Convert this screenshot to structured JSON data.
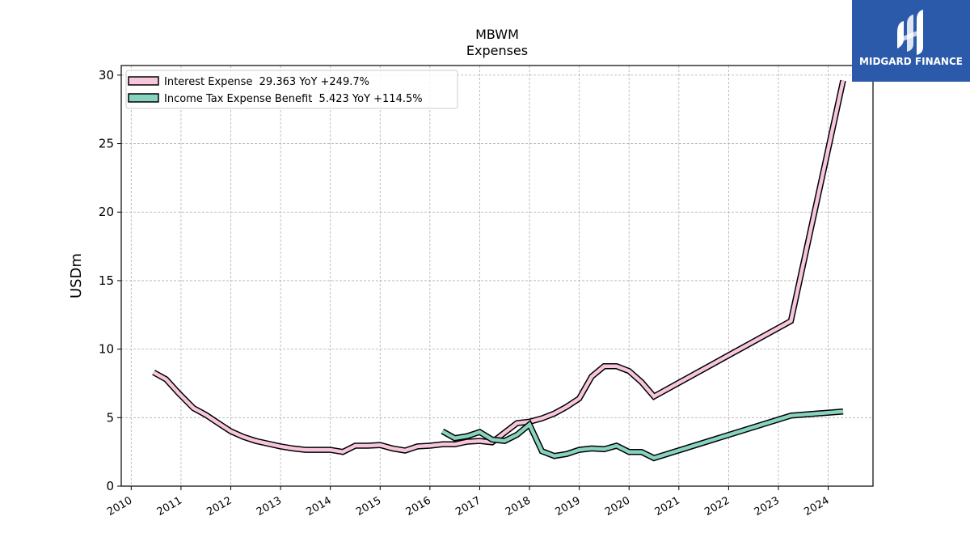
{
  "brand": {
    "name": "MIDGARD FINANCE",
    "bg_color": "#2b5aaa"
  },
  "chart_data": {
    "type": "line",
    "title": "MBWM",
    "subtitle": "Expenses",
    "xlabel": "",
    "ylabel": "USDm",
    "xlim": [
      2009.8,
      2024.9
    ],
    "ylim": [
      0,
      30.7
    ],
    "x_ticks": [
      "2010",
      "2011",
      "2012",
      "2013",
      "2014",
      "2015",
      "2016",
      "2017",
      "2018",
      "2019",
      "2020",
      "2021",
      "2022",
      "2023",
      "2024"
    ],
    "y_ticks": [
      "0",
      "5",
      "10",
      "15",
      "20",
      "25",
      "30"
    ],
    "grid": true,
    "legend_position": "top-left",
    "series": [
      {
        "name": "Interest Expense  29.363 YoY +249.7%",
        "color": "#f7c6dc",
        "x": [
          2010.45,
          2010.7,
          2010.95,
          2011.25,
          2011.5,
          2011.75,
          2012.0,
          2012.25,
          2012.5,
          2012.75,
          2013.0,
          2013.25,
          2013.5,
          2013.75,
          2014.0,
          2014.25,
          2014.5,
          2014.75,
          2015.0,
          2015.25,
          2015.5,
          2015.75,
          2016.0,
          2016.25,
          2016.5,
          2016.75,
          2017.0,
          2017.25,
          2017.5,
          2017.75,
          2018.0,
          2018.25,
          2018.5,
          2018.75,
          2019.0,
          2019.25,
          2019.5,
          2019.75,
          2020.0,
          2020.25,
          2020.5,
          2023.25,
          2024.3
        ],
        "values": [
          8.3,
          7.8,
          6.8,
          5.7,
          5.2,
          4.6,
          4.0,
          3.6,
          3.3,
          3.1,
          2.9,
          2.75,
          2.65,
          2.65,
          2.65,
          2.5,
          2.95,
          2.95,
          3.0,
          2.75,
          2.6,
          2.9,
          2.95,
          3.05,
          3.05,
          3.25,
          3.3,
          3.2,
          3.9,
          4.6,
          4.7,
          4.95,
          5.3,
          5.8,
          6.4,
          8.0,
          8.75,
          8.75,
          8.4,
          7.6,
          6.55,
          12.05,
          29.6
        ]
      },
      {
        "name": "Income Tax Expense Benefit  5.423 YoY +114.5%",
        "color": "#88d3c0",
        "x": [
          2016.25,
          2016.5,
          2016.75,
          2017.0,
          2017.25,
          2017.5,
          2017.75,
          2018.0,
          2018.25,
          2018.5,
          2018.75,
          2019.0,
          2019.25,
          2019.5,
          2019.75,
          2020.0,
          2020.25,
          2020.5,
          2023.25,
          2024.3
        ],
        "values": [
          4.0,
          3.5,
          3.65,
          3.95,
          3.4,
          3.3,
          3.75,
          4.5,
          2.55,
          2.2,
          2.35,
          2.65,
          2.75,
          2.7,
          2.95,
          2.5,
          2.5,
          2.05,
          5.15,
          5.45
        ]
      }
    ]
  }
}
